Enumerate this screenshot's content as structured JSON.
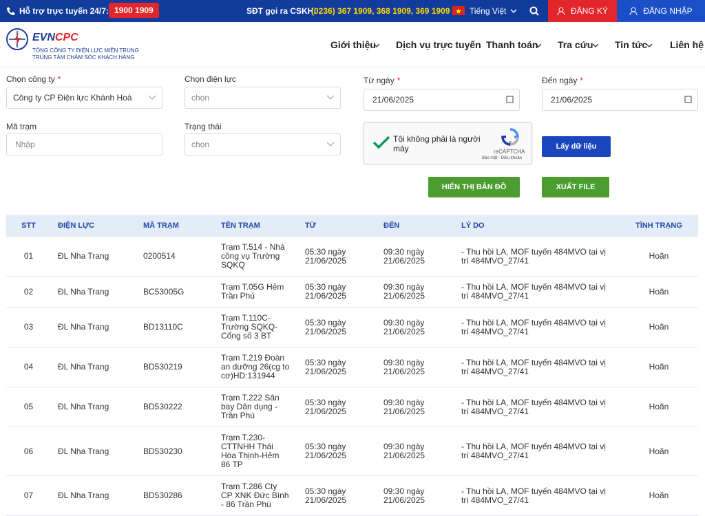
{
  "topbar": {
    "support_label": "Hỗ trợ trực tuyến 24/7:",
    "hotline": "1900 1909",
    "cskh_label": "SĐT gọi ra CSKH:",
    "cskh_numbers": "(0236) 367 1909, 368 1909, 369 1909",
    "language": "Tiếng Việt",
    "register": "ĐĂNG KÝ",
    "login": "ĐĂNG NHẬP"
  },
  "header": {
    "logo_evn": "EVN",
    "logo_cpc": "CPC",
    "org_line1": "TỔNG CÔNG TY ĐIỆN LỰC MIỀN TRUNG",
    "org_line2": "TRUNG TÂM CHĂM SÓC KHÁCH HÀNG",
    "nav": [
      "Giới thiệu",
      "Dịch vụ trực tuyến",
      "Thanh toán",
      "Tra cứu",
      "Tin tức",
      "Liên hệ"
    ]
  },
  "form": {
    "company": {
      "label": "Chọn công ty",
      "mark": "*",
      "value": "Công ty CP Điện lực Khánh Hoà"
    },
    "unit": {
      "label": "Chọn điện lực",
      "placeholder": "chọn"
    },
    "from_date": {
      "label": "Từ ngày",
      "mark": "*",
      "value": "21/06/2025"
    },
    "to_date": {
      "label": "Đến ngày",
      "mark": "*",
      "value": "21/06/2025"
    },
    "station_code": {
      "label": "Mã trạm",
      "placeholder": "Nhập"
    },
    "status": {
      "label": "Trạng thái",
      "placeholder": "chọn"
    },
    "captcha": {
      "text": "Tôi không phải là người máy",
      "brand": "reCAPTCHA",
      "terms": "Bảo mật - Điều khoản"
    },
    "fetch_button": "Lấy dữ liệu",
    "map_button": "HIỂN THỊ BẢN ĐỒ",
    "export_button": "XUẤT FILE"
  },
  "table": {
    "headers": [
      "STT",
      "ĐIỆN LỰC",
      "MÃ TRẠM",
      "TÊN TRẠM",
      "TỪ",
      "ĐẾN",
      "LÝ DO",
      "TÌNH TRẠNG"
    ],
    "rows": [
      [
        "01",
        "ĐL Nha Trang",
        "0200514",
        "Trạm T.514 - Nhà công vụ Trường SQKQ",
        "05:30 ngày 21/06/2025",
        "09:30 ngày 21/06/2025",
        "- Thu hồi LA, MOF tuyến 484MVO tại vị trí 484MVO_27/41",
        "Hoãn"
      ],
      [
        "02",
        "ĐL Nha Trang",
        "BC53005G",
        "Trạm T.05G Hẻm Trần Phú",
        "05:30 ngày 21/06/2025",
        "09:30 ngày 21/06/2025",
        "- Thu hồi LA, MOF tuyến 484MVO tại vị trí 484MVO_27/41",
        "Hoãn"
      ],
      [
        "03",
        "ĐL Nha Trang",
        "BD13110C",
        "Trạm T.110C-Trường SQKQ-Cổng số 3 BT",
        "05:30 ngày 21/06/2025",
        "09:30 ngày 21/06/2025",
        "- Thu hồi LA, MOF tuyến 484MVO tại vị trí 484MVO_27/41",
        "Hoãn"
      ],
      [
        "04",
        "ĐL Nha Trang",
        "BD530219",
        "Trạm T.219 Đoàn an dưỡng 26(cg to cơ)HD:131944",
        "05:30 ngày 21/06/2025",
        "09:30 ngày 21/06/2025",
        "- Thu hồi LA, MOF tuyến 484MVO tại vị trí 484MVO_27/41",
        "Hoãn"
      ],
      [
        "05",
        "ĐL Nha Trang",
        "BD530222",
        "Trạm T.222 Sân bay Dân dụng - Trần Phú",
        "05:30 ngày 21/06/2025",
        "09:30 ngày 21/06/2025",
        "- Thu hồi LA, MOF tuyến 484MVO tại vị trí 484MVO_27/41",
        "Hoãn"
      ],
      [
        "06",
        "ĐL Nha Trang",
        "BD530230",
        "Trạm T.230-CTTNHH Thái Hòa Thịnh-Hẻm 86 TP",
        "05:30 ngày 21/06/2025",
        "09:30 ngày 21/06/2025",
        "- Thu hồi LA, MOF tuyến 484MVO tại vị trí 484MVO_27/41",
        "Hoãn"
      ],
      [
        "07",
        "ĐL Nha Trang",
        "BD530286",
        "Trạm T.286 Cty CP XNK Đức Bình - 86 Trần Phú",
        "05:30 ngày 21/06/2025",
        "09:30 ngày 21/06/2025",
        "- Thu hồi LA, MOF tuyến 484MVO tại vị trí 484MVO_27/41",
        "Hoãn"
      ]
    ]
  }
}
